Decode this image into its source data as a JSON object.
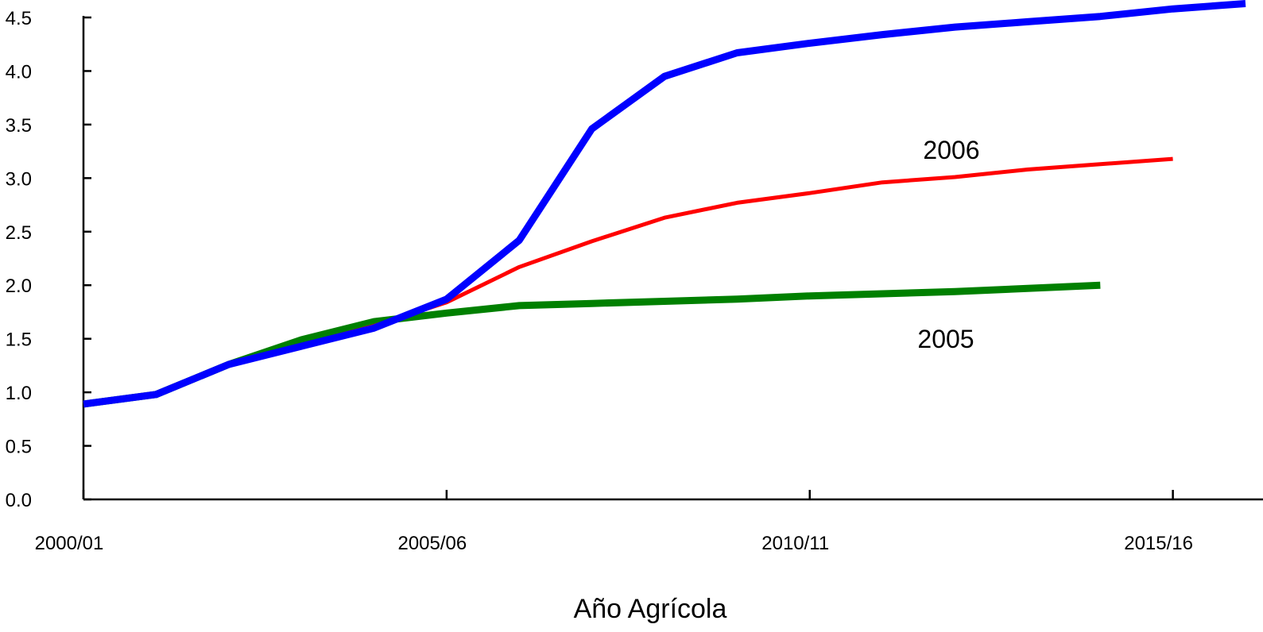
{
  "chart_data": {
    "type": "line",
    "xlabel": "Año Agrícola",
    "ylabel": "",
    "title": "",
    "ylim": [
      0,
      4.5
    ],
    "y_ticks": [
      "0.0",
      "0.5",
      "1.0",
      "1.5",
      "2.0",
      "2.5",
      "3.0",
      "3.5",
      "4.0",
      "4.5"
    ],
    "x_tick_labels": [
      "2000/01",
      "2005/06",
      "2010/11",
      "2015/16"
    ],
    "x_tick_positions": [
      2000,
      2005,
      2010,
      2015
    ],
    "grid": false,
    "series": [
      {
        "color": "#0000ff",
        "x": [
          2000,
          2001,
          2002,
          2003,
          2004,
          2005,
          2006,
          2007,
          2008,
          2009,
          2010,
          2011,
          2012,
          2013,
          2014,
          2015,
          2016
        ],
        "values": [
          0.89,
          0.98,
          1.26,
          1.43,
          1.6,
          1.87,
          2.42,
          3.46,
          3.95,
          4.17,
          4.26,
          4.34,
          4.41,
          4.46,
          4.51,
          4.58,
          4.63
        ]
      },
      {
        "name": "2006",
        "color": "#ff0000",
        "x": [
          2000,
          2001,
          2002,
          2003,
          2004,
          2005,
          2006,
          2007,
          2008,
          2009,
          2010,
          2011,
          2012,
          2013,
          2014,
          2015
        ],
        "values": [
          0.89,
          0.98,
          1.26,
          1.44,
          1.62,
          1.84,
          2.17,
          2.41,
          2.63,
          2.77,
          2.86,
          2.96,
          3.01,
          3.08,
          3.13,
          3.18
        ]
      },
      {
        "name": "2005",
        "color": "#008000",
        "x": [
          2000,
          2001,
          2002,
          2003,
          2004,
          2005,
          2006,
          2007,
          2008,
          2009,
          2010,
          2011,
          2012,
          2013,
          2014
        ],
        "values": [
          0.89,
          0.98,
          1.26,
          1.49,
          1.66,
          1.74,
          1.81,
          1.83,
          1.85,
          1.87,
          1.9,
          1.92,
          1.94,
          1.97,
          2.0
        ]
      }
    ]
  }
}
